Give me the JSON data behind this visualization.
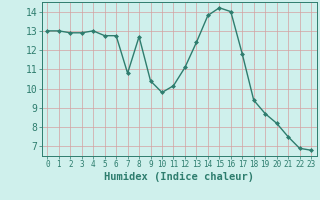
{
  "x": [
    0,
    1,
    2,
    3,
    4,
    5,
    6,
    7,
    8,
    9,
    10,
    11,
    12,
    13,
    14,
    15,
    16,
    17,
    18,
    19,
    20,
    21,
    22,
    23
  ],
  "y": [
    13.0,
    13.0,
    12.9,
    12.9,
    13.0,
    12.75,
    12.75,
    10.8,
    12.7,
    10.4,
    9.8,
    10.15,
    11.1,
    12.4,
    13.8,
    14.2,
    14.0,
    11.8,
    9.4,
    8.7,
    8.2,
    7.5,
    6.9,
    6.8
  ],
  "line_color": "#2e7d6e",
  "marker": "D",
  "marker_size": 2.0,
  "line_width": 1.0,
  "bg_color": "#cff0ec",
  "grid_color_major": "#d4a0a0",
  "grid_color_minor": "#e8d0d0",
  "xlabel": "Humidex (Indice chaleur)",
  "xlabel_fontsize": 7.5,
  "xlabel_color": "#2e7d6e",
  "tick_color": "#2e7d6e",
  "ytick_fontsize": 7,
  "xtick_fontsize": 5.5,
  "xlim": [
    -0.5,
    23.5
  ],
  "ylim": [
    6.5,
    14.5
  ],
  "yticks": [
    7,
    8,
    9,
    10,
    11,
    12,
    13,
    14
  ],
  "xticks": [
    0,
    1,
    2,
    3,
    4,
    5,
    6,
    7,
    8,
    9,
    10,
    11,
    12,
    13,
    14,
    15,
    16,
    17,
    18,
    19,
    20,
    21,
    22,
    23
  ]
}
